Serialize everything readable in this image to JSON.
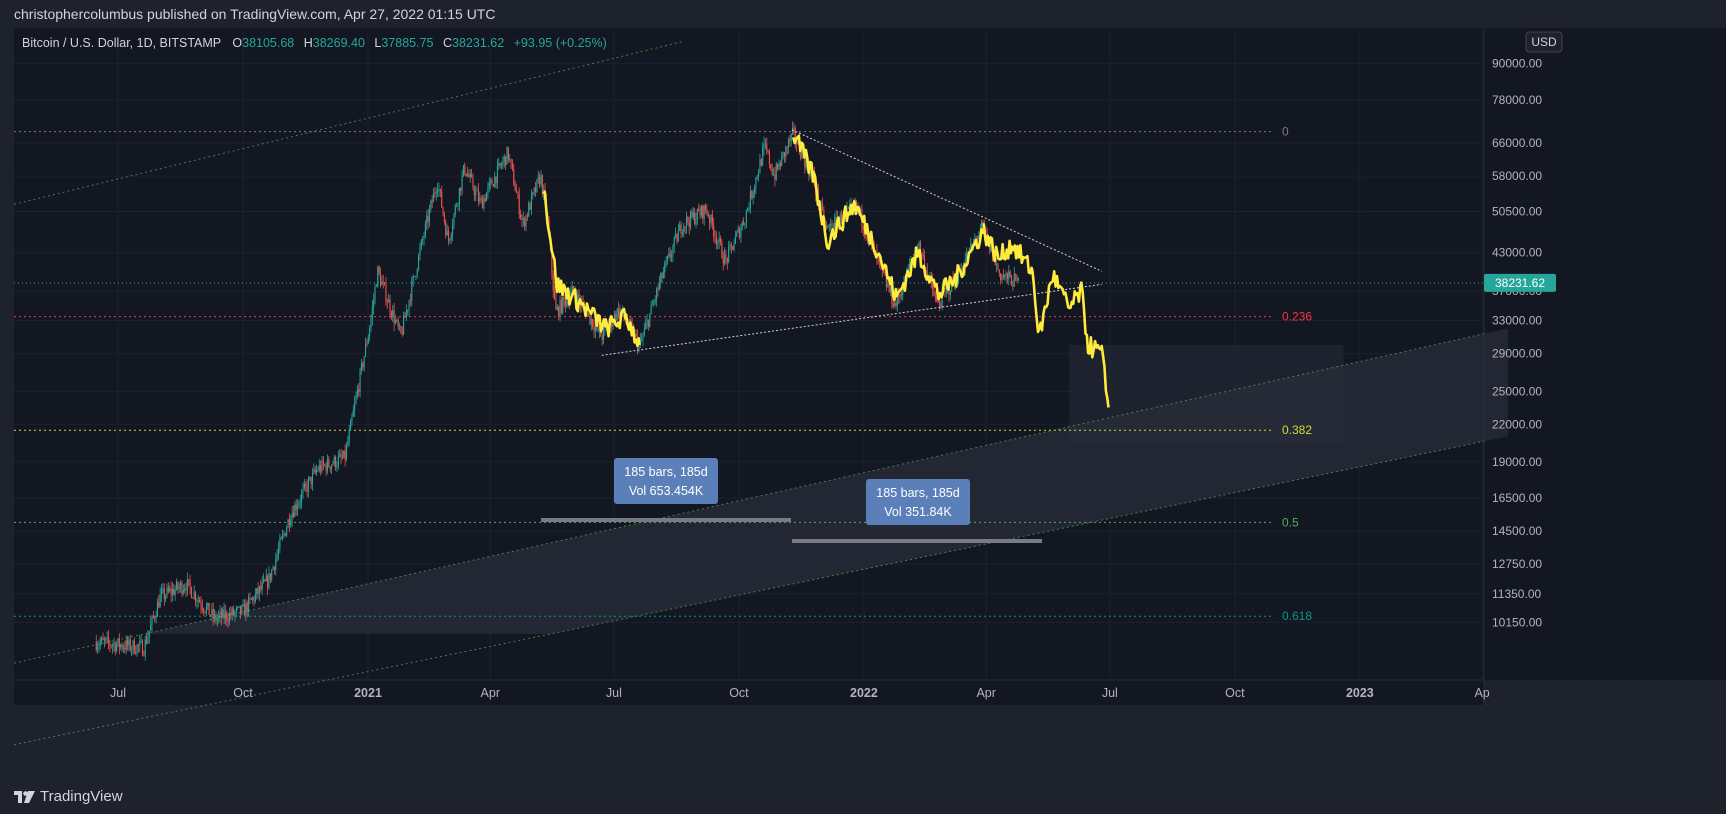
{
  "header": {
    "published_line": "christophercolumbus published on TradingView.com, Apr 27, 2022 01:15 UTC"
  },
  "legend": {
    "symbol": "Bitcoin / U.S. Dollar, 1D, BITSTAMP",
    "o_label": "O",
    "o_value": "38105.68",
    "h_label": "H",
    "h_value": "38269.40",
    "l_label": "L",
    "l_value": "37885.75",
    "c_label": "C",
    "c_value": "38231.62",
    "change": "+93.95 (+0.25%)"
  },
  "currency_button": "USD",
  "footer": {
    "brand": "TradingView"
  },
  "colors": {
    "background": "#131722",
    "frame": "#1e222d",
    "up_candle": "#26a69a",
    "down_candle": "#ef5350",
    "projection": "#ffeb3b",
    "price_tag": "#26a69a",
    "measure_box": "#5b7fb8"
  },
  "chart_data": {
    "type": "candlestick",
    "title": "Bitcoin / U.S. Dollar, 1D, BITSTAMP",
    "x_tick_labels": [
      "Jul",
      "Oct",
      "2021",
      "Apr",
      "Jul",
      "Oct",
      "2022",
      "Apr",
      "Jul",
      "Oct",
      "2023",
      "Ap"
    ],
    "y_tick_labels": [
      "90000.00",
      "78000.00",
      "66000.00",
      "58000.00",
      "50500.00",
      "43000.00",
      "37000.00",
      "33000.00",
      "29000.00",
      "25000.00",
      "22000.00",
      "19000.00",
      "16500.00",
      "14500.00",
      "12750.00",
      "11350.00",
      "10150.00"
    ],
    "y_scale": "log",
    "last_price": "38231.62",
    "price_series_anchor_points": [
      [
        "2020-06-15",
        9400
      ],
      [
        "2020-07-20",
        9200
      ],
      [
        "2020-08-01",
        11200
      ],
      [
        "2020-08-20",
        11800
      ],
      [
        "2020-09-10",
        10300
      ],
      [
        "2020-10-01",
        10600
      ],
      [
        "2020-10-20",
        12000
      ],
      [
        "2020-11-05",
        15500
      ],
      [
        "2020-11-25",
        18500
      ],
      [
        "2020-12-15",
        19300
      ],
      [
        "2021-01-03",
        33000
      ],
      [
        "2021-01-08",
        40000
      ],
      [
        "2021-01-25",
        31000
      ],
      [
        "2021-02-10",
        45000
      ],
      [
        "2021-02-21",
        57000
      ],
      [
        "2021-03-01",
        45000
      ],
      [
        "2021-03-13",
        60000
      ],
      [
        "2021-03-25",
        52000
      ],
      [
        "2021-04-14",
        63500
      ],
      [
        "2021-04-25",
        48000
      ],
      [
        "2021-05-08",
        58000
      ],
      [
        "2021-05-13",
        49000
      ],
      [
        "2021-05-19",
        34000
      ],
      [
        "2021-06-01",
        37000
      ],
      [
        "2021-06-22",
        31000
      ],
      [
        "2021-07-05",
        34500
      ],
      [
        "2021-07-20",
        29800
      ],
      [
        "2021-08-05",
        39000
      ],
      [
        "2021-08-20",
        48000
      ],
      [
        "2021-09-07",
        51000
      ],
      [
        "2021-09-21",
        41500
      ],
      [
        "2021-10-05",
        49000
      ],
      [
        "2021-10-20",
        65000
      ],
      [
        "2021-10-27",
        58000
      ],
      [
        "2021-11-10",
        68500
      ],
      [
        "2021-11-25",
        57000
      ],
      [
        "2021-12-04",
        47000
      ],
      [
        "2021-12-27",
        51500
      ],
      [
        "2022-01-10",
        42000
      ],
      [
        "2022-01-24",
        35000
      ],
      [
        "2022-02-10",
        44500
      ],
      [
        "2022-02-24",
        35000
      ],
      [
        "2022-03-10",
        39000
      ],
      [
        "2022-03-29",
        47500
      ],
      [
        "2022-04-11",
        39500
      ],
      [
        "2022-04-25",
        38231
      ]
    ],
    "projection_series_anchor_points": [
      [
        "2021-05-10",
        56000
      ],
      [
        "2021-05-20",
        38000
      ],
      [
        "2021-06-05",
        35500
      ],
      [
        "2021-06-25",
        32000
      ],
      [
        "2021-07-10",
        33500
      ],
      [
        "2021-07-20",
        30000
      ],
      [
        "2021-11-10",
        68500
      ],
      [
        "2021-11-25",
        58000
      ],
      [
        "2021-12-05",
        45000
      ],
      [
        "2021-12-25",
        52000
      ],
      [
        "2022-01-10",
        44000
      ],
      [
        "2022-01-25",
        36000
      ],
      [
        "2022-02-10",
        43000
      ],
      [
        "2022-02-25",
        36500
      ],
      [
        "2022-03-10",
        39000
      ],
      [
        "2022-03-30",
        47000
      ],
      [
        "2022-04-10",
        42000
      ],
      [
        "2022-04-20",
        44500
      ],
      [
        "2022-05-05",
        40000
      ],
      [
        "2022-05-10",
        31000
      ],
      [
        "2022-05-20",
        39500
      ],
      [
        "2022-06-01",
        34500
      ],
      [
        "2022-06-10",
        37000
      ],
      [
        "2022-06-15",
        30000
      ],
      [
        "2022-06-25",
        29000
      ],
      [
        "2022-06-30",
        23500
      ]
    ],
    "fib_levels": [
      {
        "label": "0",
        "price": 69000
      },
      {
        "label": "0.236",
        "price": 33500
      },
      {
        "label": "0.382",
        "price": 21500
      },
      {
        "label": "0.5",
        "price": 15000
      },
      {
        "label": "0.618",
        "price": 10400
      }
    ],
    "current_price_line": 38231.62,
    "measure_boxes": [
      {
        "line1": "185 bars, 185d",
        "line2": "Vol 653.454K"
      },
      {
        "line1": "185 bars, 185d",
        "line2": "Vol 351.84K"
      }
    ],
    "trendlines": [
      {
        "from": [
          "2021-11-09",
          69500
        ],
        "to": [
          "2022-06-25",
          40000
        ]
      },
      {
        "from": [
          "2021-06-22",
          28800
        ],
        "to": [
          "2022-06-25",
          38000
        ]
      },
      {
        "from": [
          "2020-05-01",
          53000
        ],
        "to": [
          "2021-08-20",
          98000
        ]
      }
    ],
    "channel_lines": [
      {
        "from": [
          "2020-07-20",
          9700
        ],
        "to": [
          "2023-04-20",
          32000
        ]
      },
      {
        "from": [
          "2021-05-15",
          9700
        ],
        "to": [
          "2023-04-20",
          21000
        ]
      }
    ],
    "grid": true
  }
}
